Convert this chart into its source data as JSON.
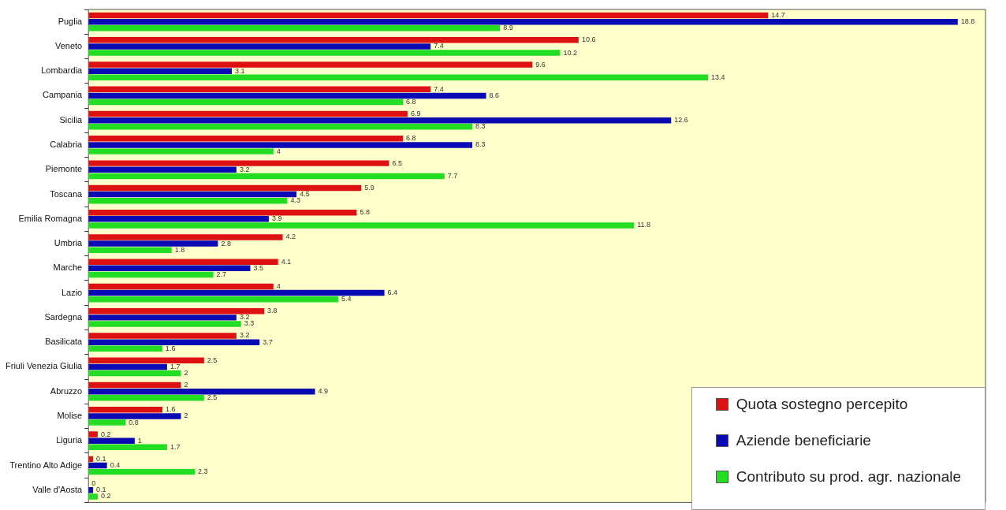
{
  "chart_data": {
    "type": "bar",
    "orientation": "horizontal",
    "categories": [
      "Puglia",
      "Veneto",
      "Lombardia",
      "Campania",
      "Sicilia",
      "Calabria",
      "Piemonte",
      "Toscana",
      "Emilia Romagna",
      "Umbria",
      "Marche",
      "Lazio",
      "Sardegna",
      "Basilicata",
      "Friuli Venezia Giulia",
      "Abruzzo",
      "Molise",
      "Liguria",
      "Trentino Alto Adige",
      "Valle d'Aosta"
    ],
    "series": [
      {
        "name": "Quota sostegno percepito",
        "color": "#dd1111",
        "values": [
          14.7,
          10.6,
          9.6,
          7.4,
          6.9,
          6.8,
          6.5,
          5.9,
          5.8,
          4.2,
          4.1,
          4,
          3.8,
          3.2,
          2.5,
          2,
          1.6,
          0.2,
          0.1,
          0
        ]
      },
      {
        "name": "Aziende beneficiarie",
        "color": "#0a0ab4",
        "values": [
          18.8,
          7.4,
          3.1,
          8.6,
          12.6,
          8.3,
          3.2,
          4.5,
          3.9,
          2.8,
          3.5,
          6.4,
          3.2,
          3.7,
          1.7,
          4.9,
          2,
          1,
          0.4,
          0.1
        ]
      },
      {
        "name": "Contributo su prod. agr. nazionale",
        "color": "#22dd22",
        "values": [
          8.9,
          10.2,
          13.4,
          6.8,
          8.3,
          4,
          7.7,
          4.3,
          11.8,
          1.8,
          2.7,
          5.4,
          3.3,
          1.6,
          2,
          2.5,
          0.8,
          1.7,
          2.3,
          0.2
        ]
      }
    ],
    "xlim": [
      0,
      19.4
    ],
    "tick_labels": "y",
    "grid": false,
    "legend": "bottom right",
    "data_labels": true
  }
}
